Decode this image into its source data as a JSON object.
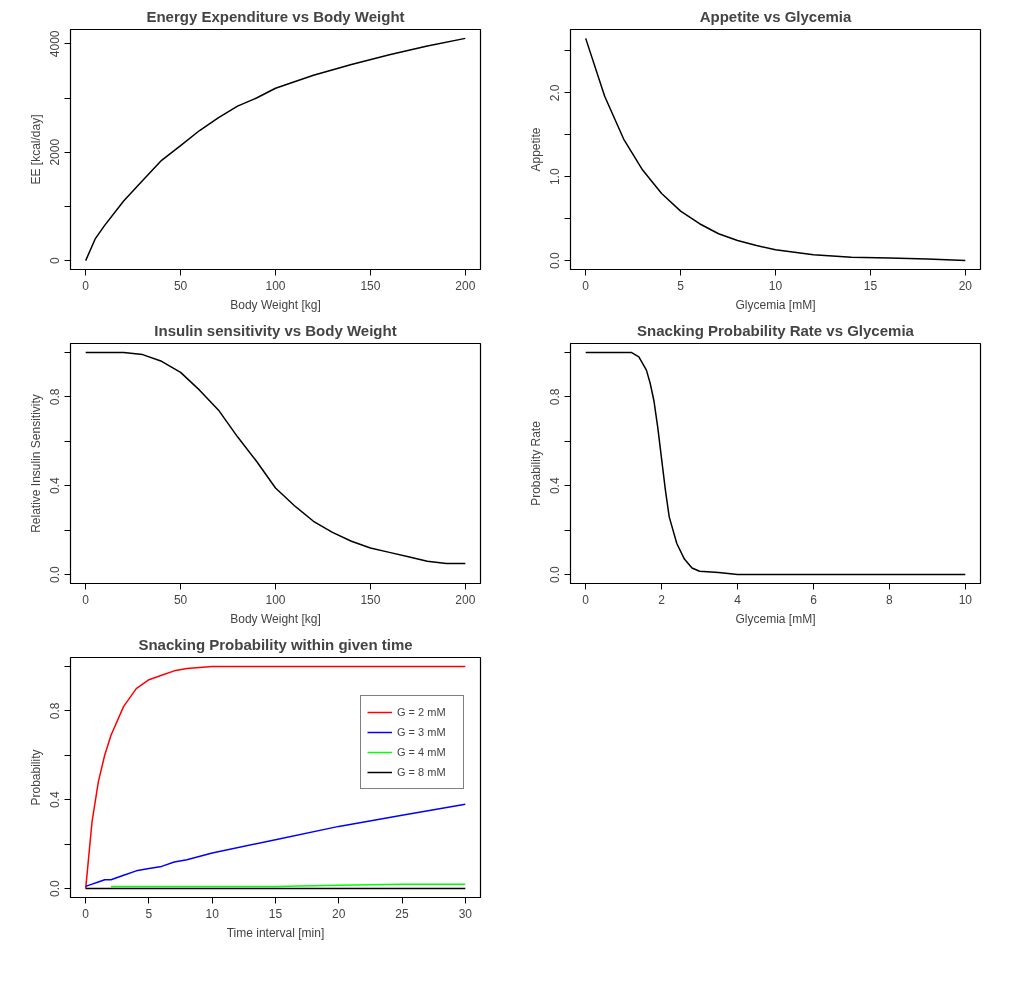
{
  "chart_data": [
    {
      "type": "line",
      "title": "Energy Expenditure vs Body Weight",
      "xlabel": "Body Weight [kg]",
      "ylabel": "EE [kcal/day]",
      "xlim": [
        -8,
        208
      ],
      "ylim": [
        -164,
        4264
      ],
      "xticks": [
        0,
        50,
        100,
        150,
        200
      ],
      "yticks": [
        0,
        {
          "value": 1000,
          "label": null
        },
        2000,
        {
          "value": 3000,
          "label": null
        },
        4000
      ],
      "grid": false,
      "legend": false,
      "marker": "none",
      "line_style": "solid",
      "x": [
        0,
        5,
        10,
        20,
        30,
        40,
        50,
        60,
        70,
        80,
        90,
        100,
        120,
        140,
        160,
        180,
        200
      ],
      "series": [
        {
          "color": "#000000",
          "values": [
            0,
            400,
            650,
            1100,
            1480,
            1850,
            2120,
            2400,
            2640,
            2850,
            3000,
            3180,
            3420,
            3620,
            3800,
            3960,
            4100
          ]
        }
      ]
    },
    {
      "type": "line",
      "title": "Appetite vs Glycemia",
      "xlabel": "Glycemia [mM]",
      "ylabel": "Appetite",
      "xlim": [
        -0.8,
        20.8
      ],
      "ylim": [
        -0.106,
        2.756
      ],
      "xticks": [
        0,
        5,
        10,
        15,
        20
      ],
      "yticks": [
        {
          "value": 0,
          "label": "0.0"
        },
        {
          "value": 0.5,
          "label": null
        },
        {
          "value": 1,
          "label": "1.0"
        },
        {
          "value": 1.5,
          "label": null
        },
        {
          "value": 2,
          "label": "2.0"
        },
        {
          "value": 2.5,
          "label": null
        }
      ],
      "grid": false,
      "legend": false,
      "marker": "none",
      "line_style": "solid",
      "x": [
        0,
        1,
        2,
        3,
        4,
        5,
        6,
        7,
        8,
        9,
        10,
        12,
        14,
        16,
        18,
        20
      ],
      "series": [
        {
          "color": "#000000",
          "values": [
            2.65,
            1.96,
            1.45,
            1.08,
            0.8,
            0.59,
            0.44,
            0.32,
            0.24,
            0.18,
            0.13,
            0.07,
            0.04,
            0.03,
            0.02,
            0.0
          ]
        }
      ]
    },
    {
      "type": "line",
      "title": "Insulin sensitivity vs Body Weight",
      "xlabel": "Body Weight [kg]",
      "ylabel": "Relative Insulin Sensitivity",
      "xlim": [
        -8,
        208
      ],
      "ylim": [
        -0.04,
        1.04
      ],
      "xticks": [
        0,
        50,
        100,
        150,
        200
      ],
      "yticks": [
        {
          "value": 0,
          "label": "0.0"
        },
        {
          "value": 0.2,
          "label": null
        },
        0.4,
        {
          "value": 0.6,
          "label": null
        },
        0.8,
        {
          "value": 1,
          "label": null
        }
      ],
      "grid": false,
      "legend": false,
      "marker": "none",
      "line_style": "solid",
      "x": [
        0,
        20,
        30,
        40,
        50,
        60,
        70,
        80,
        90,
        100,
        110,
        120,
        130,
        140,
        150,
        160,
        170,
        180,
        190,
        200
      ],
      "series": [
        {
          "color": "#000000",
          "values": [
            1,
            1,
            0.99,
            0.96,
            0.91,
            0.83,
            0.74,
            0.62,
            0.51,
            0.39,
            0.31,
            0.24,
            0.19,
            0.15,
            0.12,
            0.1,
            0.08,
            0.06,
            0.05,
            0.05
          ]
        }
      ]
    },
    {
      "type": "line",
      "title": "Snacking Probability Rate vs Glycemia",
      "xlabel": "Glycemia [mM]",
      "ylabel": "Probability Rate",
      "xlim": [
        -0.4,
        10.4
      ],
      "ylim": [
        -0.04,
        1.04
      ],
      "xticks": [
        0,
        2,
        4,
        6,
        8,
        10
      ],
      "yticks": [
        {
          "value": 0,
          "label": "0.0"
        },
        {
          "value": 0.2,
          "label": null
        },
        0.4,
        {
          "value": 0.6,
          "label": null
        },
        0.8,
        {
          "value": 1,
          "label": null
        }
      ],
      "grid": false,
      "legend": false,
      "marker": "none",
      "line_style": "solid",
      "x": [
        0,
        1.2,
        1.4,
        1.6,
        1.7,
        1.8,
        1.9,
        2.0,
        2.1,
        2.2,
        2.4,
        2.6,
        2.8,
        3.0,
        3.5,
        4,
        10
      ],
      "series": [
        {
          "color": "#000000",
          "values": [
            1,
            1,
            0.98,
            0.92,
            0.86,
            0.78,
            0.66,
            0.52,
            0.38,
            0.26,
            0.14,
            0.07,
            0.03,
            0.015,
            0.01,
            0,
            0
          ]
        }
      ]
    },
    {
      "type": "line",
      "title": "Snacking Probability within given time",
      "xlabel": "Time interval [min]",
      "ylabel": "Probability",
      "xlim": [
        -1.2,
        31.2
      ],
      "ylim": [
        -0.04,
        1.04
      ],
      "xticks": [
        0,
        5,
        10,
        15,
        20,
        25,
        30
      ],
      "yticks": [
        {
          "value": 0,
          "label": "0.0"
        },
        {
          "value": 0.2,
          "label": null
        },
        0.4,
        {
          "value": 0.6,
          "label": null
        },
        0.8,
        {
          "value": 1,
          "label": null
        }
      ],
      "grid": false,
      "legend": "right",
      "marker": "none",
      "line_style": "solid",
      "x": [
        0,
        0.5,
        1,
        1.5,
        2,
        3,
        4,
        5,
        6,
        7,
        8,
        10,
        15,
        20,
        25,
        30
      ],
      "series": [
        {
          "name": "G = 2 mM",
          "color": "#ff0000",
          "values": [
            0,
            0.3,
            0.48,
            0.6,
            0.69,
            0.82,
            0.9,
            0.94,
            0.96,
            0.98,
            0.99,
            1,
            1,
            1,
            1,
            1
          ]
        },
        {
          "name": "G = 3 mM",
          "color": "#0000ff",
          "values": [
            0.01,
            0.02,
            0.03,
            0.04,
            0.04,
            0.06,
            0.08,
            0.09,
            0.1,
            0.12,
            0.13,
            0.16,
            0.22,
            0.28,
            0.33,
            0.38
          ]
        },
        {
          "name": "G = 4 mM",
          "color": "#00ff00",
          "x": [
            2,
            3,
            4,
            5,
            6,
            7,
            8,
            10,
            15,
            20,
            25,
            30
          ],
          "values": [
            0.01,
            0.01,
            0.01,
            0.01,
            0.01,
            0.01,
            0.01,
            0.01,
            0.01,
            0.015,
            0.02,
            0.02
          ]
        },
        {
          "name": "G = 8 mM",
          "color": "#000000",
          "values": [
            0,
            0,
            0,
            0,
            0,
            0,
            0,
            0,
            0,
            0,
            0,
            0,
            0,
            0,
            0,
            0
          ]
        }
      ]
    }
  ]
}
